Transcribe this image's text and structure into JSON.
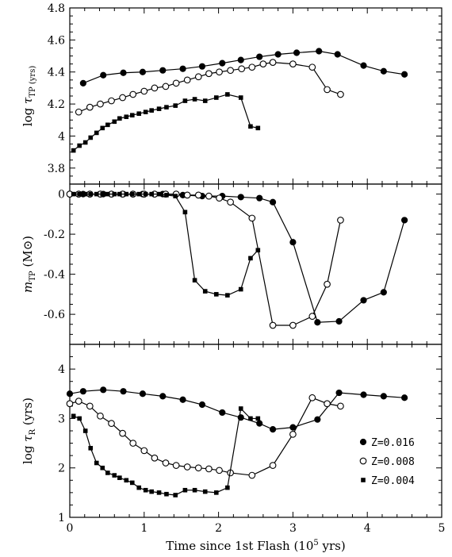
{
  "chart_data": [
    {
      "type": "line",
      "panel": "top",
      "ylabel": "log τ_TP (yrs)",
      "ylabel_parts": {
        "prefix": "log ",
        "symbol": "τ",
        "subscript": "TP (yrs)"
      },
      "xlim": [
        0,
        5
      ],
      "ylim": [
        3.7,
        4.8
      ],
      "yticks": [
        "3.8",
        "4",
        "4.2",
        "4.4",
        "4.6",
        "4.8"
      ],
      "ytick_values": [
        3.8,
        4.0,
        4.2,
        4.4,
        4.6,
        4.8
      ],
      "series": [
        {
          "name": "Z=0.016",
          "marker": "filled-circle",
          "x": [
            0.18,
            0.45,
            0.72,
            0.98,
            1.25,
            1.52,
            1.78,
            2.05,
            2.3,
            2.55,
            2.8,
            3.05,
            3.35,
            3.6,
            3.95,
            4.22,
            4.5
          ],
          "y": [
            4.33,
            4.38,
            4.395,
            4.4,
            4.41,
            4.42,
            4.435,
            4.455,
            4.475,
            4.495,
            4.51,
            4.52,
            4.53,
            4.51,
            4.44,
            4.405,
            4.385
          ]
        },
        {
          "name": "Z=0.008",
          "marker": "open-circle",
          "x": [
            0.12,
            0.27,
            0.41,
            0.56,
            0.71,
            0.85,
            1.0,
            1.14,
            1.29,
            1.43,
            1.58,
            1.73,
            1.87,
            2.01,
            2.16,
            2.31,
            2.45,
            2.6,
            2.73,
            3.0,
            3.26,
            3.46,
            3.64
          ],
          "y": [
            4.15,
            4.18,
            4.2,
            4.22,
            4.24,
            4.26,
            4.28,
            4.3,
            4.31,
            4.33,
            4.35,
            4.37,
            4.39,
            4.4,
            4.41,
            4.42,
            4.43,
            4.45,
            4.46,
            4.45,
            4.43,
            4.29,
            4.26
          ]
        },
        {
          "name": "Z=0.004",
          "marker": "filled-square",
          "x": [
            0.05,
            0.13,
            0.21,
            0.28,
            0.36,
            0.44,
            0.51,
            0.6,
            0.67,
            0.76,
            0.84,
            0.93,
            1.02,
            1.1,
            1.2,
            1.3,
            1.42,
            1.55,
            1.68,
            1.82,
            1.97,
            2.12,
            2.3,
            2.43,
            2.53
          ],
          "y": [
            3.91,
            3.94,
            3.96,
            3.99,
            4.02,
            4.05,
            4.07,
            4.09,
            4.11,
            4.12,
            4.13,
            4.14,
            4.15,
            4.16,
            4.17,
            4.18,
            4.19,
            4.22,
            4.23,
            4.22,
            4.24,
            4.26,
            4.24,
            4.06,
            4.05
          ]
        }
      ]
    },
    {
      "type": "line",
      "panel": "middle",
      "ylabel": "m_TP (M⊙)",
      "ylabel_parts": {
        "symbol": "m",
        "subscript": "TP",
        "suffix": " (M⊙)"
      },
      "xlim": [
        0,
        5
      ],
      "ylim": [
        -0.75,
        0.05
      ],
      "yticks": [
        "0",
        "-0.2",
        "-0.4",
        "-0.6"
      ],
      "ytick_values": [
        0,
        -0.2,
        -0.4,
        -0.6
      ],
      "series": [
        {
          "name": "Z=0.016",
          "marker": "filled-circle",
          "x": [
            0.0,
            0.18,
            0.45,
            0.72,
            0.98,
            1.25,
            1.52,
            1.78,
            2.05,
            2.3,
            2.55,
            2.73,
            3.0,
            3.33,
            3.62,
            3.95,
            4.22,
            4.5
          ],
          "y": [
            0.0,
            0.0,
            0.0,
            0.0,
            0.0,
            0.0,
            -0.005,
            -0.01,
            -0.01,
            -0.015,
            -0.02,
            -0.04,
            -0.24,
            -0.64,
            -0.635,
            -0.53,
            -0.49,
            -0.13
          ],
          "note": "points drawn with stroked segments from measured screenshot"
        },
        {
          "name": "Z=0.008",
          "marker": "open-circle",
          "x": [
            0.0,
            0.12,
            0.27,
            0.41,
            0.56,
            0.71,
            0.85,
            1.0,
            1.14,
            1.29,
            1.43,
            1.58,
            1.73,
            1.87,
            2.01,
            2.16,
            2.45,
            2.73,
            3.0,
            3.26,
            3.46,
            3.64
          ],
          "y": [
            0.0,
            0.0,
            0.0,
            0.0,
            0.0,
            0.0,
            0.0,
            0.0,
            0.0,
            0.0,
            0.0,
            -0.005,
            -0.005,
            -0.01,
            -0.02,
            -0.04,
            -0.12,
            -0.655,
            -0.655,
            -0.61,
            -0.45,
            -0.13
          ]
        },
        {
          "name": "Z=0.004",
          "marker": "filled-square",
          "x": [
            0.05,
            0.13,
            0.21,
            0.28,
            0.36,
            0.44,
            0.51,
            0.6,
            0.67,
            0.76,
            0.84,
            0.93,
            1.02,
            1.1,
            1.2,
            1.3,
            1.42,
            1.55,
            1.68,
            1.82,
            1.97,
            2.12,
            2.3,
            2.43,
            2.53
          ],
          "y": [
            0.0,
            0.0,
            0.0,
            0.0,
            0.0,
            0.0,
            0.0,
            0.0,
            0.0,
            0.0,
            0.0,
            0.0,
            0.0,
            0.0,
            0.0,
            -0.005,
            -0.01,
            -0.09,
            -0.43,
            -0.485,
            -0.5,
            -0.505,
            -0.475,
            -0.32,
            -0.28
          ]
        }
      ]
    },
    {
      "type": "line",
      "panel": "bottom",
      "ylabel": "log τ_R (yrs)",
      "ylabel_parts": {
        "prefix": "log ",
        "symbol": "τ",
        "subscript": "R",
        "suffix": " (yrs)"
      },
      "xlabel": "Time since 1st Flash (10^5 yrs)",
      "xlabel_parts": {
        "prefix": "Time since 1st Flash (10",
        "superscript": "5",
        "suffix": " yrs)"
      },
      "xlim": [
        0,
        5
      ],
      "ylim": [
        1,
        4.5
      ],
      "xticks": [
        "0",
        "1",
        "2",
        "3",
        "4",
        "5"
      ],
      "xtick_values": [
        0,
        1,
        2,
        3,
        4,
        5
      ],
      "yticks": [
        "1",
        "2",
        "3",
        "4"
      ],
      "ytick_values": [
        1,
        2,
        3,
        4
      ],
      "series": [
        {
          "name": "Z=0.016",
          "marker": "filled-circle",
          "x": [
            0.0,
            0.18,
            0.45,
            0.72,
            0.98,
            1.25,
            1.52,
            1.78,
            2.05,
            2.3,
            2.55,
            2.73,
            3.0,
            3.33,
            3.62,
            3.95,
            4.22,
            4.5
          ],
          "y": [
            3.5,
            3.55,
            3.58,
            3.55,
            3.5,
            3.45,
            3.38,
            3.28,
            3.12,
            3.02,
            2.9,
            2.78,
            2.82,
            2.98,
            3.52,
            3.48,
            3.45,
            3.42
          ]
        },
        {
          "name": "Z=0.008",
          "marker": "open-circle",
          "x": [
            0.0,
            0.12,
            0.27,
            0.41,
            0.56,
            0.71,
            0.85,
            1.0,
            1.14,
            1.29,
            1.43,
            1.58,
            1.73,
            1.87,
            2.01,
            2.16,
            2.45,
            2.73,
            3.0,
            3.26,
            3.46,
            3.64
          ],
          "y": [
            3.3,
            3.35,
            3.25,
            3.05,
            2.9,
            2.7,
            2.5,
            2.35,
            2.2,
            2.1,
            2.05,
            2.02,
            2.0,
            1.98,
            1.95,
            1.9,
            1.85,
            2.05,
            2.68,
            3.42,
            3.3,
            3.25
          ]
        },
        {
          "name": "Z=0.004",
          "marker": "filled-square",
          "x": [
            0.05,
            0.13,
            0.21,
            0.28,
            0.36,
            0.44,
            0.51,
            0.6,
            0.67,
            0.76,
            0.84,
            0.93,
            1.02,
            1.1,
            1.2,
            1.3,
            1.42,
            1.55,
            1.68,
            1.82,
            1.97,
            2.12,
            2.3,
            2.43,
            2.53
          ],
          "y": [
            3.05,
            3.0,
            2.75,
            2.4,
            2.1,
            2.0,
            1.9,
            1.85,
            1.8,
            1.75,
            1.7,
            1.6,
            1.55,
            1.52,
            1.5,
            1.47,
            1.45,
            1.55,
            1.55,
            1.52,
            1.5,
            1.6,
            3.2,
            3.0,
            3.0
          ]
        }
      ],
      "legend": {
        "placement": "bottom-right",
        "entries": [
          {
            "label": "Z=0.016",
            "marker": "filled-circle"
          },
          {
            "label": "Z=0.008",
            "marker": "open-circle"
          },
          {
            "label": "Z=0.004",
            "marker": "filled-square"
          }
        ]
      }
    }
  ]
}
